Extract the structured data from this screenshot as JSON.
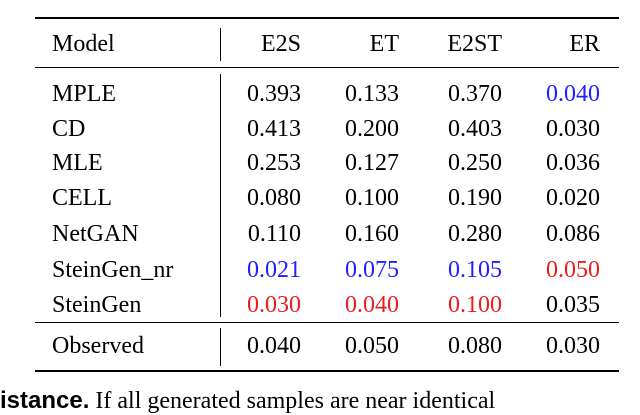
{
  "table": {
    "header": [
      "Model",
      "E2S",
      "ET",
      "E2ST",
      "ER"
    ],
    "rows": [
      {
        "cells": [
          "MPLE",
          "0.393",
          "0.133",
          "0.370",
          "0.040"
        ],
        "colors": [
          "#000000",
          "#000000",
          "#000000",
          "#000000",
          "#1f1fff"
        ]
      },
      {
        "cells": [
          "CD",
          "0.413",
          "0.200",
          "0.403",
          "0.030"
        ],
        "colors": [
          "#000000",
          "#000000",
          "#000000",
          "#000000",
          "#000000"
        ]
      },
      {
        "cells": [
          "MLE",
          "0.253",
          "0.127",
          "0.250",
          "0.036"
        ],
        "colors": [
          "#000000",
          "#000000",
          "#000000",
          "#000000",
          "#000000"
        ]
      },
      {
        "cells": [
          "CELL",
          "0.080",
          "0.100",
          "0.190",
          "0.020"
        ],
        "colors": [
          "#000000",
          "#000000",
          "#000000",
          "#000000",
          "#000000"
        ]
      },
      {
        "cells": [
          "NetGAN",
          "0.110",
          "0.160",
          "0.280",
          "0.086"
        ],
        "colors": [
          "#000000",
          "#000000",
          "#000000",
          "#000000",
          "#000000"
        ]
      },
      {
        "cells": [
          "SteinGen_nr",
          "0.021",
          "0.075",
          "0.105",
          "0.050"
        ],
        "colors": [
          "#000000",
          "#1f1fff",
          "#1f1fff",
          "#1f1fff",
          "#e61e1e"
        ]
      },
      {
        "cells": [
          "SteinGen",
          "0.030",
          "0.040",
          "0.100",
          "0.035"
        ],
        "colors": [
          "#000000",
          "#e61e1e",
          "#e61e1e",
          "#e61e1e",
          "#000000"
        ]
      }
    ],
    "footer_row": {
      "cells": [
        "Observed",
        "0.040",
        "0.050",
        "0.080",
        "0.030"
      ],
      "colors": [
        "#000000",
        "#000000",
        "#000000",
        "#000000",
        "#000000"
      ]
    }
  },
  "following_text": {
    "heading": "istance.",
    "text": "If all generated samples are near identical"
  }
}
